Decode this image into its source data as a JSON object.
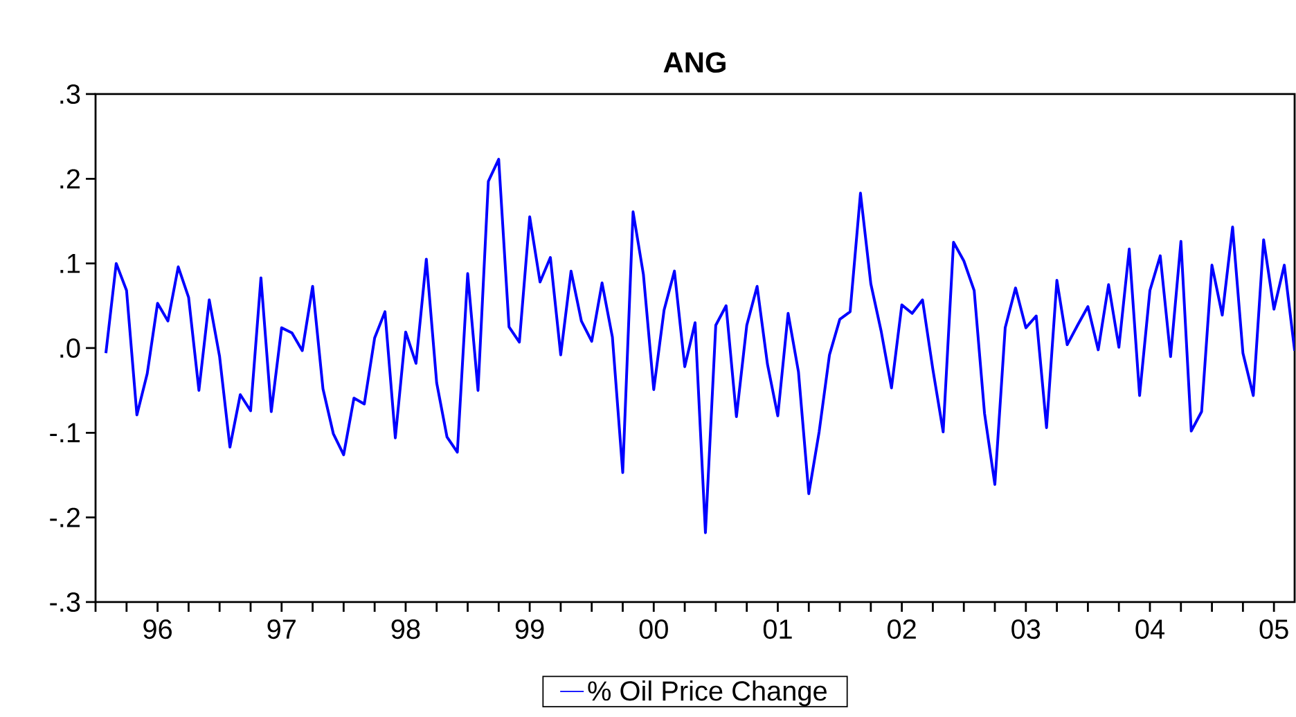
{
  "chart_data": {
    "type": "line",
    "title": "ANG",
    "x": [
      "1996-02",
      "1996-03",
      "1996-04",
      "1996-05",
      "1996-06",
      "1996-07",
      "1996-08",
      "1996-09",
      "1996-10",
      "1996-11",
      "1996-12",
      "1997-01",
      "1997-02",
      "1997-03",
      "1997-04",
      "1997-05",
      "1997-06",
      "1997-07",
      "1997-08",
      "1997-09",
      "1997-10",
      "1997-11",
      "1997-12",
      "1998-01",
      "1998-02",
      "1998-03",
      "1998-04",
      "1998-05",
      "1998-06",
      "1998-07",
      "1998-08",
      "1998-09",
      "1998-10",
      "1998-11",
      "1998-12",
      "1999-01",
      "1999-02",
      "1999-03",
      "1999-04",
      "1999-05",
      "1999-06",
      "1999-07",
      "1999-08",
      "1999-09",
      "1999-10",
      "1999-11",
      "1999-12",
      "2000-01",
      "2000-02",
      "2000-03",
      "2000-04",
      "2000-05",
      "2000-06",
      "2000-07",
      "2000-08",
      "2000-09",
      "2000-10",
      "2000-11",
      "2000-12",
      "2001-01",
      "2001-02",
      "2001-03",
      "2001-04",
      "2001-05",
      "2001-06",
      "2001-07",
      "2001-08",
      "2001-09",
      "2001-10",
      "2001-11",
      "2001-12",
      "2002-01",
      "2002-02",
      "2002-03",
      "2002-04",
      "2002-05",
      "2002-06",
      "2002-07",
      "2002-08",
      "2002-09",
      "2002-10",
      "2002-11",
      "2002-12",
      "2003-01",
      "2003-02",
      "2003-03",
      "2003-04",
      "2003-05",
      "2003-06",
      "2003-07",
      "2003-08",
      "2003-09",
      "2003-10",
      "2003-11",
      "2003-12",
      "2004-01",
      "2004-02",
      "2004-03",
      "2004-04",
      "2004-05",
      "2004-06",
      "2004-07",
      "2004-08",
      "2004-09",
      "2004-10",
      "2004-11",
      "2004-12",
      "2005-01",
      "2005-02",
      "2005-03",
      "2005-04",
      "2005-05",
      "2005-06",
      "2005-07",
      "2005-08",
      "2005-09"
    ],
    "series": [
      {
        "name": "% Oil Price Change",
        "color": "#0000ff",
        "values": [
          -0.006,
          0.1,
          0.068,
          -0.079,
          -0.03,
          0.053,
          0.032,
          0.096,
          0.06,
          -0.05,
          0.057,
          -0.01,
          -0.117,
          -0.055,
          -0.074,
          0.083,
          -0.075,
          0.024,
          0.018,
          -0.003,
          0.073,
          -0.048,
          -0.101,
          -0.126,
          -0.059,
          -0.066,
          0.012,
          0.043,
          -0.106,
          0.019,
          -0.018,
          0.105,
          -0.041,
          -0.105,
          -0.123,
          0.088,
          -0.05,
          0.197,
          0.223,
          0.025,
          0.007,
          0.155,
          0.078,
          0.107,
          -0.008,
          0.091,
          0.032,
          0.008,
          0.077,
          0.013,
          -0.147,
          0.161,
          0.087,
          -0.049,
          0.045,
          0.091,
          -0.022,
          0.03,
          -0.218,
          0.027,
          0.05,
          -0.081,
          0.027,
          0.073,
          -0.019,
          -0.08,
          0.041,
          -0.028,
          -0.172,
          -0.099,
          -0.008,
          0.034,
          0.043,
          0.183,
          0.076,
          0.02,
          -0.047,
          0.051,
          0.041,
          0.057,
          -0.025,
          -0.099,
          0.125,
          0.103,
          0.068,
          -0.077,
          -0.161,
          0.024,
          0.071,
          0.024,
          0.038,
          -0.094,
          0.08,
          0.004,
          0.027,
          0.049,
          -0.002,
          0.075,
          0.001,
          0.117,
          -0.056,
          0.068,
          0.109,
          -0.01,
          0.126,
          -0.098,
          -0.075,
          0.098,
          0.039,
          0.143,
          -0.006,
          -0.056,
          0.128,
          0.046,
          0.098,
          -0.003
        ]
      }
    ],
    "xlim": [
      "1996-01",
      "2005-09"
    ],
    "xticks": [
      {
        "value": "1996-01",
        "label": null
      },
      {
        "value": "1996-04",
        "label": null
      },
      {
        "value": "1996-07",
        "label": "96"
      },
      {
        "value": "1996-10",
        "label": null
      },
      {
        "value": "1997-01",
        "label": null
      },
      {
        "value": "1997-04",
        "label": null
      },
      {
        "value": "1997-07",
        "label": "97"
      },
      {
        "value": "1997-10",
        "label": null
      },
      {
        "value": "1998-01",
        "label": null
      },
      {
        "value": "1998-04",
        "label": null
      },
      {
        "value": "1998-07",
        "label": "98"
      },
      {
        "value": "1998-10",
        "label": null
      },
      {
        "value": "1999-01",
        "label": null
      },
      {
        "value": "1999-04",
        "label": null
      },
      {
        "value": "1999-07",
        "label": "99"
      },
      {
        "value": "1999-10",
        "label": null
      },
      {
        "value": "2000-01",
        "label": null
      },
      {
        "value": "2000-04",
        "label": null
      },
      {
        "value": "2000-07",
        "label": "00"
      },
      {
        "value": "2000-10",
        "label": null
      },
      {
        "value": "2001-01",
        "label": null
      },
      {
        "value": "2001-04",
        "label": null
      },
      {
        "value": "2001-07",
        "label": "01"
      },
      {
        "value": "2001-10",
        "label": null
      },
      {
        "value": "2002-01",
        "label": null
      },
      {
        "value": "2002-04",
        "label": null
      },
      {
        "value": "2002-07",
        "label": "02"
      },
      {
        "value": "2002-10",
        "label": null
      },
      {
        "value": "2003-01",
        "label": null
      },
      {
        "value": "2003-04",
        "label": null
      },
      {
        "value": "2003-07",
        "label": "03"
      },
      {
        "value": "2003-10",
        "label": null
      },
      {
        "value": "2004-01",
        "label": null
      },
      {
        "value": "2004-04",
        "label": null
      },
      {
        "value": "2004-07",
        "label": "04"
      },
      {
        "value": "2004-10",
        "label": null
      },
      {
        "value": "2005-01",
        "label": null
      },
      {
        "value": "2005-04",
        "label": null
      },
      {
        "value": "2005-07",
        "label": "05"
      }
    ],
    "ylim": [
      -0.3,
      0.3
    ],
    "yticks": [
      {
        "value": -0.3,
        "label": "-.3"
      },
      {
        "value": -0.2,
        "label": "-.2"
      },
      {
        "value": -0.1,
        "label": "-.1"
      },
      {
        "value": 0.0,
        "label": ".0"
      },
      {
        "value": 0.1,
        "label": ".1"
      },
      {
        "value": 0.2,
        "label": ".2"
      },
      {
        "value": 0.3,
        "label": ".3"
      }
    ],
    "legend": "bottom",
    "marker": "none",
    "line_style": "solid"
  }
}
